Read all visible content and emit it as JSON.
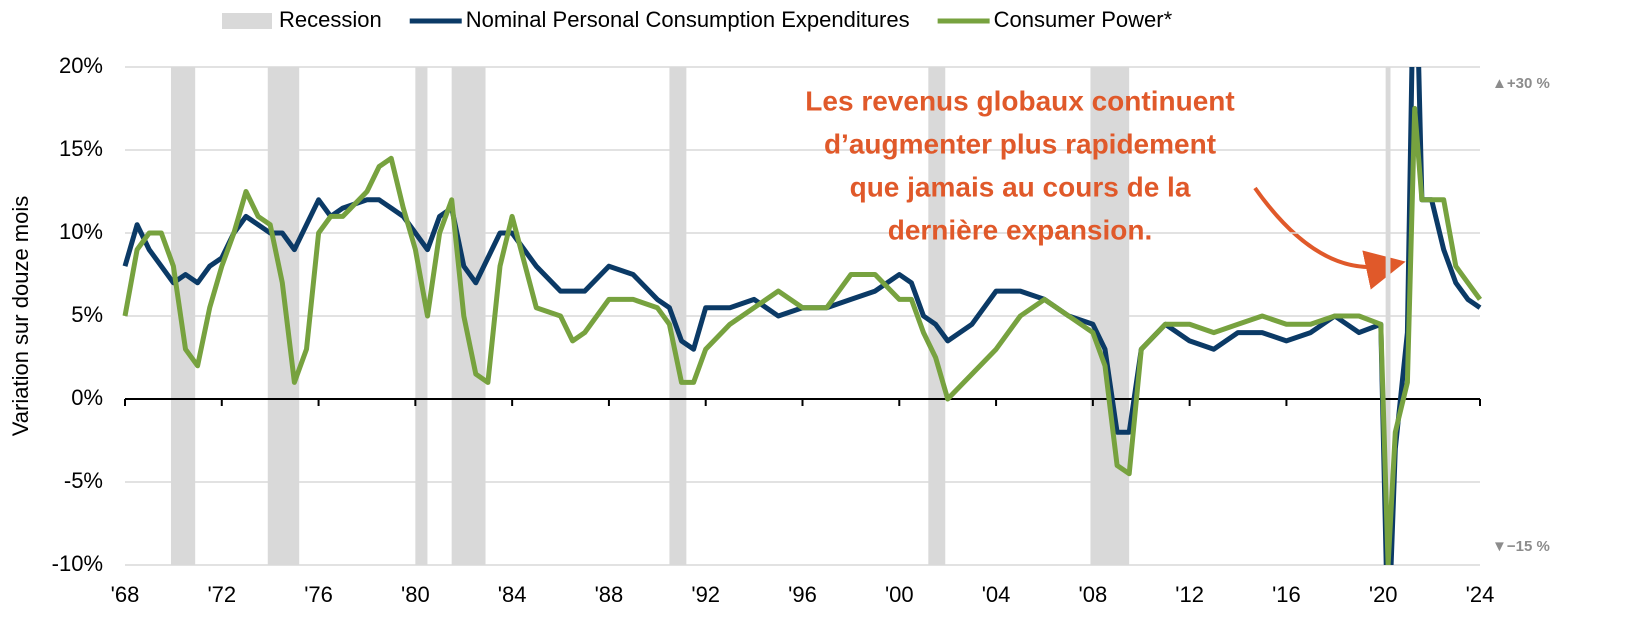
{
  "chart_data": {
    "type": "line",
    "y_label": "Variation sur douze mois",
    "legend_recession": "Recession",
    "recession_color": "#d9d9d9",
    "recessions": [
      [
        1969.9,
        1970.9
      ],
      [
        1973.9,
        1975.2
      ],
      [
        1980.0,
        1980.5
      ],
      [
        1981.5,
        1982.9
      ],
      [
        1990.5,
        1991.2
      ],
      [
        2001.2,
        2001.9
      ],
      [
        2007.9,
        2009.5
      ],
      [
        2020.1,
        2020.3
      ]
    ],
    "annotation": [
      "Les revenus globaux continuent",
      "d’augmenter plus rapidement",
      "que jamais au cours de la",
      "dernière expansion."
    ],
    "annotation_color": "#e0592a",
    "clip_labels": [
      "▲+30 %",
      "▼−15 %"
    ],
    "x": [
      1968,
      1968.5,
      1969,
      1969.5,
      1970,
      1970.5,
      1971,
      1971.5,
      1972,
      1972.5,
      1973,
      1973.5,
      1974,
      1974.5,
      1975,
      1975.5,
      1976,
      1976.5,
      1977,
      1978,
      1978.5,
      1979,
      1979.5,
      1980,
      1980.5,
      1981,
      1981.5,
      1982,
      1982.5,
      1983,
      1983.5,
      1984,
      1985,
      1986,
      1986.5,
      1987,
      1988,
      1989,
      1990,
      1990.5,
      1991,
      1991.5,
      1992,
      1993,
      1994,
      1995,
      1996,
      1997,
      1998,
      1999,
      2000,
      2000.5,
      2001,
      2001.5,
      2002,
      2003,
      2004,
      2005,
      2006,
      2007,
      2008,
      2008.5,
      2009,
      2009.5,
      2010,
      2011,
      2012,
      2013,
      2014,
      2015,
      2016,
      2017,
      2018,
      2019,
      2019.9,
      2020.2,
      2020.5,
      2021,
      2021.3,
      2021.6,
      2022,
      2022.5,
      2023,
      2023.5,
      2024
    ],
    "series": [
      {
        "name": "Nominal Personal Consumption Expenditures",
        "color": "#0b3a66",
        "values": [
          8,
          10.5,
          9,
          8,
          7,
          7.5,
          7,
          8,
          8.5,
          10,
          11,
          10.5,
          10,
          10,
          9,
          10.5,
          12,
          11,
          11.5,
          12,
          12,
          11.5,
          11,
          10,
          9,
          11,
          11.5,
          8,
          7,
          8.5,
          10,
          10,
          8,
          6.5,
          6.5,
          6.5,
          8,
          7.5,
          6,
          5.5,
          3.5,
          3,
          5.5,
          5.5,
          6,
          5,
          5.5,
          5.5,
          6,
          6.5,
          7.5,
          7,
          5,
          4.5,
          3.5,
          4.5,
          6.5,
          6.5,
          6,
          5,
          4.5,
          3,
          -2,
          -2,
          3,
          4.5,
          3.5,
          3,
          4,
          4,
          3.5,
          4,
          5,
          4,
          4.5,
          -15,
          -3,
          4,
          30,
          12,
          12,
          9,
          7,
          6,
          5.5
        ]
      },
      {
        "name": "Consumer Power*",
        "color": "#77a23f",
        "values": [
          5,
          9,
          10,
          10,
          8,
          3,
          2,
          5.5,
          8,
          10,
          12.5,
          11,
          10.5,
          7,
          1,
          3,
          10,
          11,
          11,
          12.5,
          14,
          14.5,
          11.5,
          9,
          5,
          10,
          12,
          5,
          1.5,
          1,
          8,
          11,
          5.5,
          5,
          3.5,
          4,
          6,
          6,
          5.5,
          4.5,
          1,
          1,
          3,
          4.5,
          5.5,
          6.5,
          5.5,
          5.5,
          7.5,
          7.5,
          6,
          6,
          4,
          2.5,
          0,
          1.5,
          3,
          5,
          6,
          5,
          4,
          2,
          -4,
          -4.5,
          3,
          4.5,
          4.5,
          4,
          4.5,
          5,
          4.5,
          4.5,
          5,
          5,
          4.5,
          -10,
          -2,
          1,
          17.5,
          12,
          12,
          12,
          8,
          7,
          6
        ]
      }
    ],
    "xlim": [
      1968,
      2024
    ],
    "xticks": [
      {
        "value": 1968,
        "label": "'68"
      },
      {
        "value": 1972,
        "label": "'72"
      },
      {
        "value": 1976,
        "label": "'76"
      },
      {
        "value": 1980,
        "label": "'80"
      },
      {
        "value": 1984,
        "label": "'84"
      },
      {
        "value": 1988,
        "label": "'88"
      },
      {
        "value": 1992,
        "label": "'92"
      },
      {
        "value": 1996,
        "label": "'96"
      },
      {
        "value": 2000,
        "label": "'00"
      },
      {
        "value": 2004,
        "label": "'04"
      },
      {
        "value": 2008,
        "label": "'08"
      },
      {
        "value": 2012,
        "label": "'12"
      },
      {
        "value": 2016,
        "label": "'16"
      },
      {
        "value": 2020,
        "label": "'20"
      },
      {
        "value": 2024,
        "label": "'24"
      }
    ],
    "ylim": [
      -10,
      20
    ],
    "yticks": [
      {
        "value": -10,
        "label": "-10%"
      },
      {
        "value": -5,
        "label": "-5%"
      },
      {
        "value": 0,
        "label": "0%"
      },
      {
        "value": 5,
        "label": "5%"
      },
      {
        "value": 10,
        "label": "10%"
      },
      {
        "value": 15,
        "label": "15%"
      },
      {
        "value": 20,
        "label": "20%"
      }
    ],
    "grid": true
  }
}
